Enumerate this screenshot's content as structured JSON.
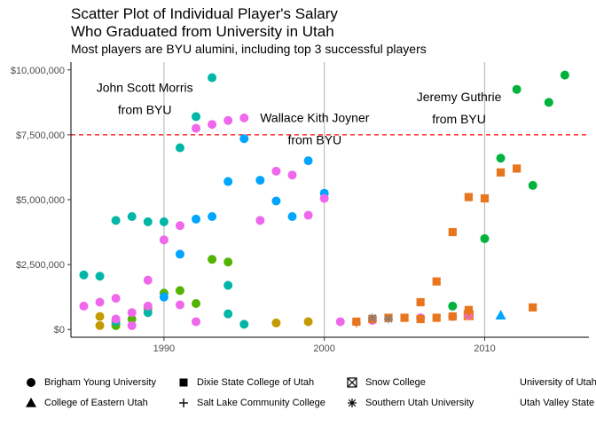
{
  "chart_data": {
    "type": "scatter",
    "title": "Scatter Plot of Individual Player's Salary",
    "title2": "Who Graduated from University in Utah",
    "subtitle": "Most players are BYU alumini, including top 3 successful players",
    "xlim": [
      1984.2,
      2016.5
    ],
    "ylim": [
      -300000,
      10300000
    ],
    "x_ticks": [
      1990,
      2000,
      2010
    ],
    "y_ticks": [
      {
        "v": 0,
        "label": "$0"
      },
      {
        "v": 2500000,
        "label": "$2,500,000"
      },
      {
        "v": 5000000,
        "label": "$5,000,000"
      },
      {
        "v": 7500000,
        "label": "$7,500,000"
      },
      {
        "v": 10000000,
        "label": "$10,000,000"
      }
    ],
    "reference_line": {
      "y": 7500000,
      "color": "#ff0000",
      "style": "dashed"
    },
    "vlines": [
      1990,
      2000,
      2010
    ],
    "annotations": [
      {
        "x": 1988.8,
        "y": 9150000,
        "line1": "John Scott Morris",
        "line2": "from BYU"
      },
      {
        "x": 1999.4,
        "y": 8000000,
        "line1": "Wallace Kith Joyner",
        "line2": "from BYU"
      },
      {
        "x": 2008.4,
        "y": 8800000,
        "line1": "Jeremy Guthrie",
        "line2": "from BYU"
      }
    ],
    "legend": [
      {
        "label": "Brigham Young University",
        "shape": "circle"
      },
      {
        "label": "College of Eastern Utah",
        "shape": "triangle"
      },
      {
        "label": "Dixie State College of Utah",
        "shape": "square"
      },
      {
        "label": "Salt Lake Community College",
        "shape": "plus"
      },
      {
        "label": "Snow College",
        "shape": "boxx"
      },
      {
        "label": "Southern Utah University",
        "shape": "star"
      },
      {
        "label": "University of Utah",
        "shape": "none"
      },
      {
        "label": "Utah Valley State",
        "shape": "none"
      }
    ],
    "series": [
      {
        "color": "#f8766d",
        "shape": "circle",
        "points": []
      },
      {
        "color": "#c49a00",
        "shape": "circle",
        "points": [
          [
            1986,
            500000
          ],
          [
            1986,
            150000
          ],
          [
            1987,
            200000
          ],
          [
            1997,
            250000
          ],
          [
            1999,
            300000
          ]
        ]
      },
      {
        "color": "#53b400",
        "shape": "circle",
        "points": [
          [
            1987,
            150000
          ],
          [
            1988,
            400000
          ],
          [
            1989,
            800000
          ],
          [
            1990,
            1400000
          ],
          [
            1991,
            1500000
          ],
          [
            1992,
            1000000
          ],
          [
            1993,
            2700000
          ],
          [
            1994,
            2600000
          ]
        ]
      },
      {
        "color": "#00b33c",
        "shape": "circle",
        "points": [
          [
            2008,
            900000
          ],
          [
            2010,
            3500000
          ],
          [
            2011,
            6600000
          ],
          [
            2012,
            9250000
          ],
          [
            2013,
            5550000
          ],
          [
            2014,
            8750000
          ],
          [
            2015,
            9800000
          ]
        ]
      },
      {
        "color": "#00b6a6",
        "shape": "circle",
        "points": [
          [
            1985,
            2100000
          ],
          [
            1986,
            2050000
          ],
          [
            1987,
            4200000
          ],
          [
            1988,
            4350000
          ],
          [
            1989,
            4150000
          ],
          [
            1990,
            4150000
          ],
          [
            1991,
            7000000
          ],
          [
            1992,
            8200000
          ],
          [
            1993,
            9700000
          ],
          [
            1994,
            1700000
          ],
          [
            1994,
            600000
          ],
          [
            1995,
            200000
          ],
          [
            1989,
            650000
          ],
          [
            1987,
            300000
          ]
        ]
      },
      {
        "color": "#00a5ff",
        "shape": "circle",
        "points": [
          [
            1990,
            1250000
          ],
          [
            1991,
            2900000
          ],
          [
            1992,
            4250000
          ],
          [
            1993,
            4350000
          ],
          [
            1994,
            5700000
          ],
          [
            1995,
            7350000
          ],
          [
            1996,
            5750000
          ],
          [
            1997,
            4950000
          ],
          [
            1998,
            4350000
          ],
          [
            1999,
            6500000
          ],
          [
            2000,
            5250000
          ]
        ]
      },
      {
        "color": "#ef67eb",
        "shape": "circle",
        "points": [
          [
            1985,
            900000
          ],
          [
            1986,
            1050000
          ],
          [
            1987,
            1200000
          ],
          [
            1987,
            400000
          ],
          [
            1988,
            650000
          ],
          [
            1988,
            150000
          ],
          [
            1989,
            1900000
          ],
          [
            1989,
            900000
          ],
          [
            1990,
            3450000
          ],
          [
            1991,
            4000000
          ],
          [
            1991,
            950000
          ],
          [
            1992,
            7750000
          ],
          [
            1992,
            300000
          ],
          [
            1993,
            7900000
          ],
          [
            1994,
            8050000
          ],
          [
            1995,
            8150000
          ],
          [
            1996,
            4200000
          ],
          [
            1997,
            6100000
          ],
          [
            1998,
            5950000
          ],
          [
            1999,
            4400000
          ],
          [
            2000,
            5050000
          ],
          [
            2001,
            300000
          ],
          [
            2003,
            350000
          ],
          [
            2006,
            450000
          ],
          [
            2008,
            500000
          ],
          [
            2009,
            550000
          ]
        ]
      },
      {
        "color": "#e8761e",
        "shape": "square",
        "points": [
          [
            2002,
            300000
          ],
          [
            2003,
            400000
          ],
          [
            2004,
            450000
          ],
          [
            2005,
            450000
          ],
          [
            2006,
            400000
          ],
          [
            2006,
            1050000
          ],
          [
            2007,
            1850000
          ],
          [
            2007,
            450000
          ],
          [
            2008,
            3750000
          ],
          [
            2008,
            500000
          ],
          [
            2009,
            5100000
          ],
          [
            2009,
            750000
          ],
          [
            2010,
            5050000
          ],
          [
            2011,
            6050000
          ],
          [
            2012,
            6200000
          ],
          [
            2013,
            850000
          ]
        ]
      },
      {
        "color": "#00a5ff",
        "shape": "triangle",
        "points": [
          [
            2011,
            550000
          ]
        ]
      },
      {
        "color": "#e8761e",
        "shape": "plus",
        "points": [
          [
            2002,
            250000
          ]
        ]
      },
      {
        "color": "#e8761e",
        "shape": "boxx",
        "points": [
          [
            2009,
            550000
          ]
        ]
      },
      {
        "color": "#7f7f7f",
        "shape": "star",
        "points": [
          [
            2003,
            450000
          ],
          [
            2004,
            400000
          ]
        ]
      }
    ]
  }
}
